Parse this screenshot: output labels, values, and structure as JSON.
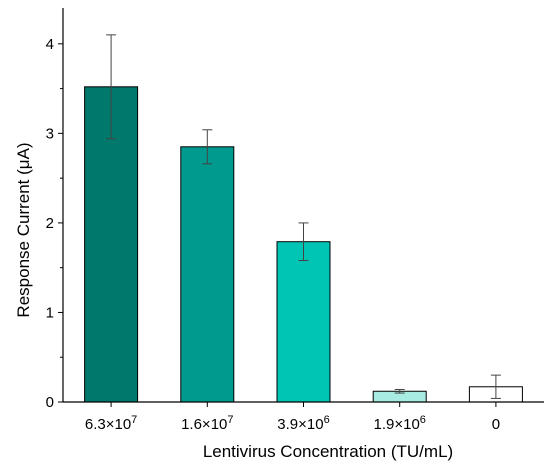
{
  "chart_data": {
    "type": "bar",
    "xlabel": "Lentivirus Concentration (TU/mL)",
    "ylabel": "Response Current (μA)",
    "ylim": [
      0,
      4.4
    ],
    "yticks": [
      "0",
      "1",
      "2",
      "3",
      "4"
    ],
    "categories": [
      {
        "base": "6.3",
        "exp": "7"
      },
      {
        "base": "1.6",
        "exp": "7"
      },
      {
        "base": "3.9",
        "exp": "6"
      },
      {
        "base": "1.9",
        "exp": "6"
      },
      {
        "base": "0",
        "exp": ""
      }
    ],
    "values": [
      3.52,
      2.85,
      1.79,
      0.12,
      0.17
    ],
    "errors": [
      0.58,
      0.19,
      0.21,
      0.02,
      0.13
    ],
    "colors": [
      "#00786c",
      "#009a8e",
      "#00c5b5",
      "#a8ebe2",
      "#ffffff"
    ],
    "grid": false,
    "legend": "none"
  }
}
